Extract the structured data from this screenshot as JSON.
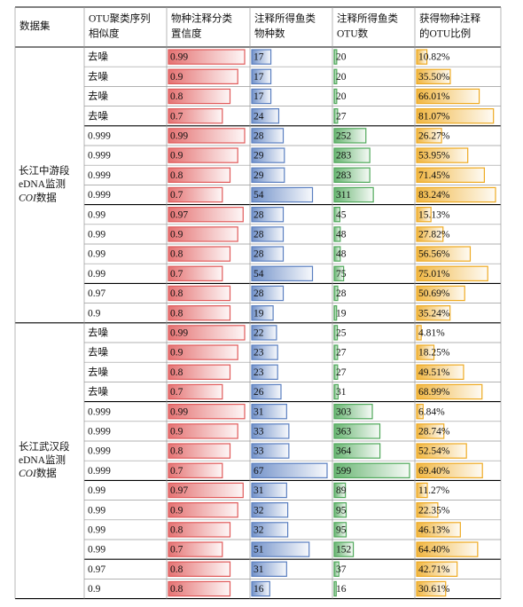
{
  "table": {
    "headers": [
      [
        "数据集"
      ],
      [
        "OTU聚类序列",
        "相似度"
      ],
      [
        "物种注释分类",
        "置信度"
      ],
      [
        "注释所得鱼类",
        "物种数"
      ],
      [
        "注释所得鱼类",
        "OTU数"
      ],
      [
        "获得物种注释",
        "的OTU比例"
      ]
    ],
    "groups": [
      {
        "label": {
          "lines": [
            "长江中游段",
            "eDNA监测"
          ],
          "italic": "COI",
          "tail": "数据"
        },
        "rows": [
          [
            "去噪",
            0.99,
            17,
            20,
            {
              "value": 10.82,
              "label": "10.82%"
            }
          ],
          [
            "去噪",
            0.9,
            17,
            20,
            {
              "value": 35.5,
              "label": "35.50%"
            }
          ],
          [
            "去噪",
            0.8,
            17,
            20,
            {
              "value": 66.01,
              "label": "66.01%"
            }
          ],
          [
            "去噪",
            0.7,
            24,
            27,
            {
              "value": 81.07,
              "label": "81.07%"
            }
          ],
          [
            "0.999",
            0.99,
            28,
            252,
            {
              "value": 26.27,
              "label": "26.27%"
            }
          ],
          [
            "0.999",
            0.9,
            29,
            283,
            {
              "value": 53.95,
              "label": "53.95%"
            }
          ],
          [
            "0.999",
            0.8,
            29,
            283,
            {
              "value": 71.45,
              "label": "71.45%"
            }
          ],
          [
            "0.999",
            0.7,
            54,
            311,
            {
              "value": 83.24,
              "label": "83.24%"
            }
          ],
          [
            "0.99",
            0.97,
            28,
            45,
            {
              "value": 15.13,
              "label": "15.13%"
            }
          ],
          [
            "0.99",
            0.9,
            28,
            48,
            {
              "value": 27.82,
              "label": "27.82%"
            }
          ],
          [
            "0.99",
            0.8,
            28,
            48,
            {
              "value": 56.56,
              "label": "56.56%"
            }
          ],
          [
            "0.99",
            0.7,
            54,
            75,
            {
              "value": 75.01,
              "label": "75.01%"
            }
          ],
          [
            "0.97",
            0.8,
            28,
            28,
            {
              "value": 50.69,
              "label": "50.69%"
            }
          ],
          [
            "0.9",
            0.8,
            19,
            19,
            {
              "value": 35.24,
              "label": "35.24%"
            }
          ]
        ]
      },
      {
        "label": {
          "lines": [
            "长江武汉段",
            "eDNA监测"
          ],
          "italic": "COI",
          "tail": "数据"
        },
        "rows": [
          [
            "去噪",
            0.99,
            22,
            25,
            {
              "value": 4.81,
              "label": "4.81%"
            }
          ],
          [
            "去噪",
            0.9,
            23,
            27,
            {
              "value": 18.25,
              "label": "18.25%"
            }
          ],
          [
            "去噪",
            0.8,
            23,
            27,
            {
              "value": 49.51,
              "label": "49.51%"
            }
          ],
          [
            "去噪",
            0.7,
            26,
            31,
            {
              "value": 68.99,
              "label": "68.99%"
            }
          ],
          [
            "0.999",
            0.99,
            31,
            303,
            {
              "value": 6.84,
              "label": "6.84%"
            }
          ],
          [
            "0.999",
            0.9,
            33,
            363,
            {
              "value": 28.74,
              "label": "28.74%"
            }
          ],
          [
            "0.999",
            0.8,
            33,
            364,
            {
              "value": 52.54,
              "label": "52.54%"
            }
          ],
          [
            "0.999",
            0.7,
            67,
            599,
            {
              "value": 69.4,
              "label": "69.40%"
            }
          ],
          [
            "0.99",
            0.97,
            31,
            89,
            {
              "value": 11.27,
              "label": "11.27%"
            }
          ],
          [
            "0.99",
            0.9,
            32,
            95,
            {
              "value": 22.35,
              "label": "22.35%"
            }
          ],
          [
            "0.99",
            0.8,
            32,
            95,
            {
              "value": 46.13,
              "label": "46.13%"
            }
          ],
          [
            "0.99",
            0.7,
            51,
            152,
            {
              "value": 64.4,
              "label": "64.40%"
            }
          ],
          [
            "0.97",
            0.8,
            31,
            37,
            {
              "value": 42.71,
              "label": "42.71%"
            }
          ],
          [
            "0.9",
            0.8,
            16,
            16,
            {
              "value": 30.61,
              "label": "30.61%"
            }
          ]
        ]
      }
    ],
    "bar_colors": [
      "#e05a5a",
      "#5a7fc0",
      "#4fa85a",
      "#eeaa22"
    ]
  }
}
